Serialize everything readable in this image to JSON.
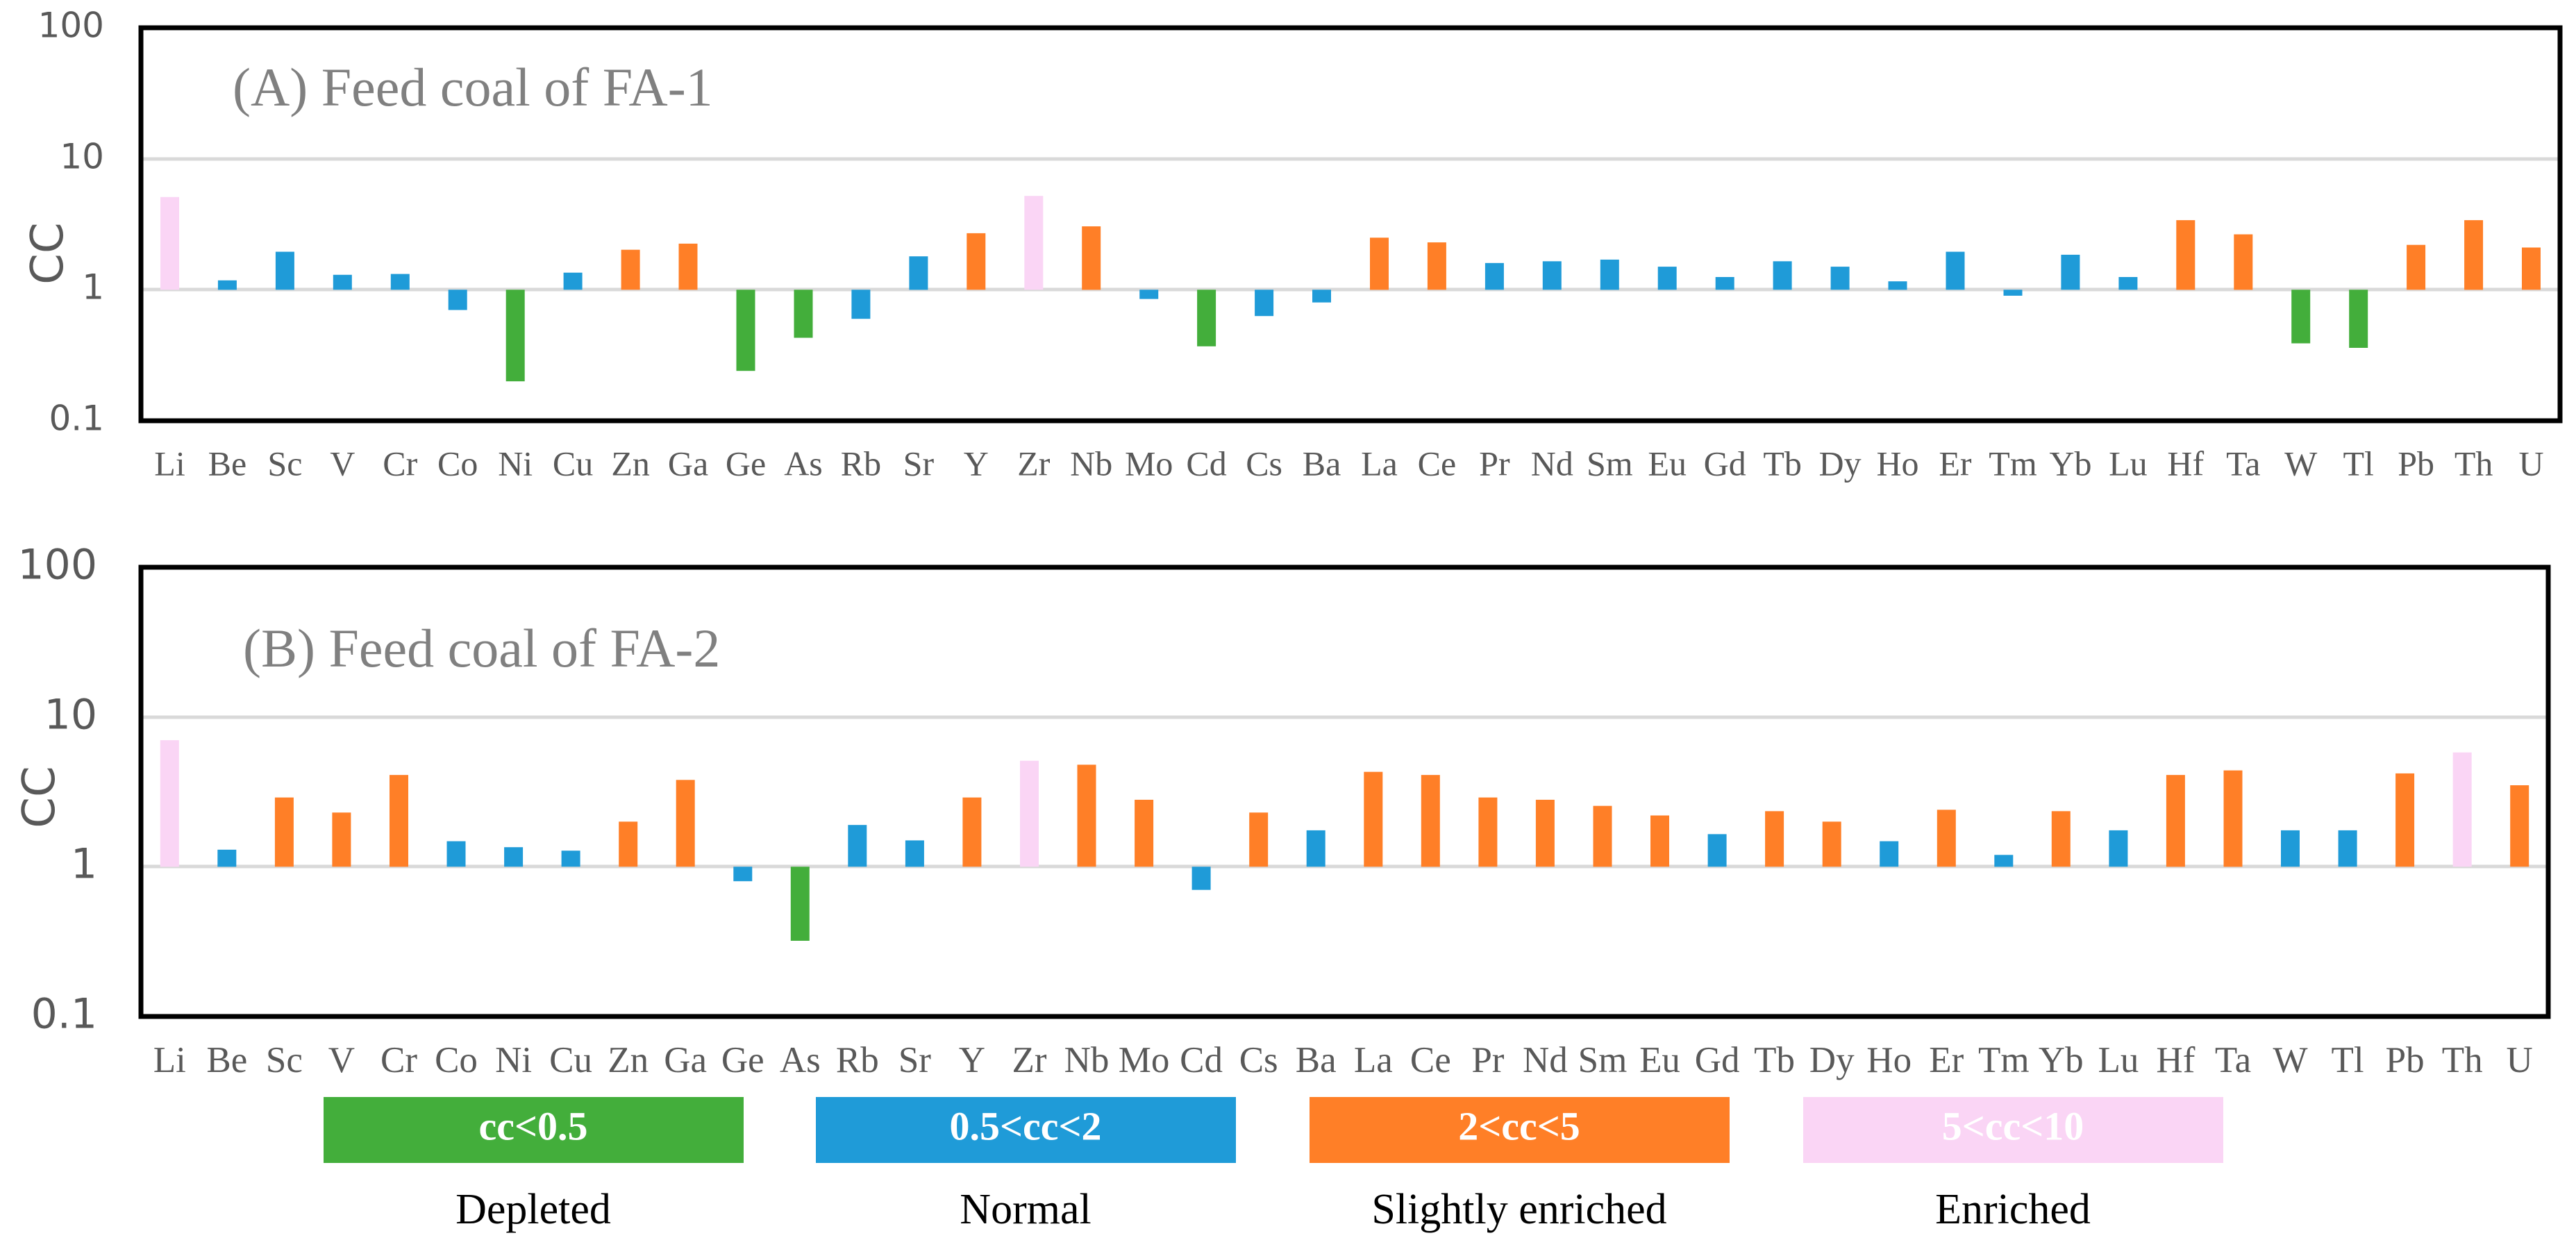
{
  "colors": {
    "depleted": "#43AE3B",
    "normal": "#1F9BD8",
    "slightly_enriched": "#FF7F27",
    "enriched": "#FAD5F5",
    "grid": "#D9D9D9",
    "frame": "#000000"
  },
  "chart_data": [
    {
      "type": "bar",
      "title": "(A) Feed coal of FA-1",
      "ylabel": "CC",
      "yscale": "log",
      "ylim": [
        0.1,
        100
      ],
      "yticks": [
        "0.1",
        "1",
        "10",
        "100"
      ],
      "baseline": 1,
      "categories": [
        "Li",
        "Be",
        "Sc",
        "V",
        "Cr",
        "Co",
        "Ni",
        "Cu",
        "Zn",
        "Ga",
        "Ge",
        "As",
        "Rb",
        "Sr",
        "Y",
        "Zr",
        "Nb",
        "Mo",
        "Cd",
        "Cs",
        "Ba",
        "La",
        "Ce",
        "Pr",
        "Nd",
        "Sm",
        "Eu",
        "Gd",
        "Tb",
        "Dy",
        "Ho",
        "Er",
        "Tm",
        "Yb",
        "Lu",
        "Hf",
        "Ta",
        "W",
        "Tl",
        "Pb",
        "Th",
        "U"
      ],
      "values": [
        5.1,
        1.18,
        1.95,
        1.3,
        1.32,
        0.7,
        0.2,
        1.35,
        2.02,
        2.25,
        0.24,
        0.43,
        0.6,
        1.8,
        2.7,
        5.2,
        3.05,
        0.85,
        0.37,
        0.63,
        0.8,
        2.5,
        2.3,
        1.6,
        1.65,
        1.7,
        1.5,
        1.25,
        1.65,
        1.5,
        1.16,
        1.95,
        0.9,
        1.85,
        1.25,
        3.4,
        2.65,
        0.39,
        0.36,
        2.2,
        3.4,
        2.1
      ]
    },
    {
      "type": "bar",
      "title": "(B) Feed coal of FA-2",
      "ylabel": "CC",
      "yscale": "log",
      "ylim": [
        0.1,
        100
      ],
      "yticks": [
        "0.1",
        "1",
        "10",
        "100"
      ],
      "baseline": 1,
      "categories": [
        "Li",
        "Be",
        "Sc",
        "V",
        "Cr",
        "Co",
        "Ni",
        "Cu",
        "Zn",
        "Ga",
        "Ge",
        "As",
        "Rb",
        "Sr",
        "Y",
        "Zr",
        "Nb",
        "Mo",
        "Cd",
        "Cs",
        "Ba",
        "La",
        "Ce",
        "Pr",
        "Nd",
        "Sm",
        "Eu",
        "Gd",
        "Tb",
        "Dy",
        "Ho",
        "Er",
        "Tm",
        "Yb",
        "Lu",
        "Hf",
        "Ta",
        "W",
        "Tl",
        "Pb",
        "Th",
        "U"
      ],
      "values": [
        7.0,
        1.3,
        2.9,
        2.3,
        4.1,
        1.48,
        1.35,
        1.28,
        2.0,
        3.8,
        0.8,
        0.32,
        1.9,
        1.5,
        2.9,
        5.1,
        4.8,
        2.8,
        0.7,
        2.3,
        1.75,
        4.3,
        4.1,
        2.9,
        2.8,
        2.55,
        2.2,
        1.65,
        2.35,
        2.0,
        1.48,
        2.4,
        1.2,
        2.35,
        1.75,
        4.1,
        4.4,
        1.75,
        1.75,
        4.2,
        5.8,
        3.5
      ]
    }
  ],
  "legend": [
    {
      "range": "cc<0.5",
      "caption": "Depleted",
      "class": "depleted"
    },
    {
      "range": "0.5<cc<2",
      "caption": "Normal",
      "class": "normal"
    },
    {
      "range": "2<cc<5",
      "caption": "Slightly enriched",
      "class": "slightly_enriched"
    },
    {
      "range": "5<cc<10",
      "caption": "Enriched",
      "class": "enriched"
    }
  ]
}
